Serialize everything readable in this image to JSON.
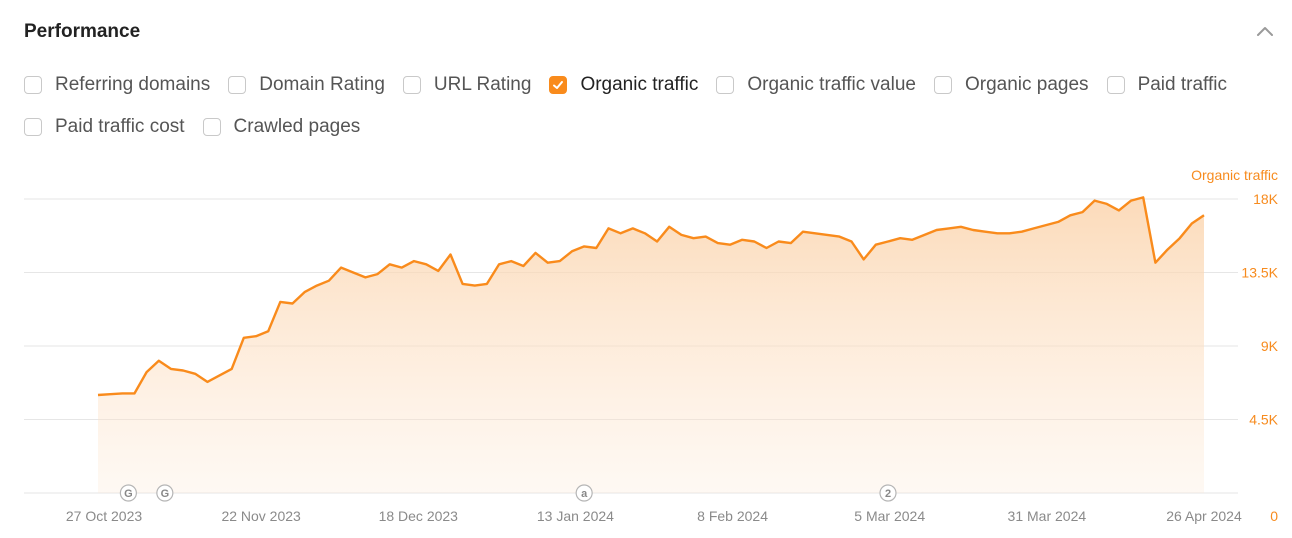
{
  "header": {
    "title": "Performance"
  },
  "filters": [
    {
      "label": "Referring domains",
      "checked": false
    },
    {
      "label": "Domain Rating",
      "checked": false
    },
    {
      "label": "URL Rating",
      "checked": false
    },
    {
      "label": "Organic traffic",
      "checked": true
    },
    {
      "label": "Organic traffic value",
      "checked": false
    },
    {
      "label": "Organic pages",
      "checked": false
    },
    {
      "label": "Paid traffic",
      "checked": false
    },
    {
      "label": "Paid traffic cost",
      "checked": false
    },
    {
      "label": "Crawled pages",
      "checked": false
    }
  ],
  "colors": {
    "accent": "#f98b1c",
    "grid": "#e6e6e6",
    "axis_text": "#8a8a8a"
  },
  "chart_data": {
    "type": "area",
    "series_label": "Organic traffic",
    "y_ticks": [
      {
        "value": 0,
        "label": "0"
      },
      {
        "value": 4500,
        "label": "4.5K"
      },
      {
        "value": 9000,
        "label": "9K"
      },
      {
        "value": 13500,
        "label": "13.5K"
      },
      {
        "value": 18000,
        "label": "18K"
      }
    ],
    "ylim": [
      0,
      18000
    ],
    "x_ticks": [
      "27 Oct 2023",
      "22 Nov 2023",
      "18 Dec 2023",
      "13 Jan 2024",
      "8 Feb 2024",
      "5 Mar 2024",
      "31 Mar 2024",
      "26 Apr 2024"
    ],
    "x_start": "2023-10-27",
    "x_end": "2024-04-26",
    "annotations": [
      {
        "date": "2023-11-01",
        "label": "G"
      },
      {
        "date": "2023-11-07",
        "label": "G"
      },
      {
        "date": "2024-01-15",
        "label": "a"
      },
      {
        "date": "2024-03-05",
        "label": "2"
      }
    ],
    "series": [
      {
        "name": "Organic traffic",
        "color": "#f98b1c",
        "x": [
          "2023-10-27",
          "2023-10-29",
          "2023-10-31",
          "2023-11-02",
          "2023-11-04",
          "2023-11-06",
          "2023-11-08",
          "2023-11-10",
          "2023-11-12",
          "2023-11-14",
          "2023-11-16",
          "2023-11-18",
          "2023-11-20",
          "2023-11-22",
          "2023-11-24",
          "2023-11-26",
          "2023-11-28",
          "2023-11-30",
          "2023-12-02",
          "2023-12-04",
          "2023-12-06",
          "2023-12-08",
          "2023-12-10",
          "2023-12-12",
          "2023-12-14",
          "2023-12-16",
          "2023-12-18",
          "2023-12-20",
          "2023-12-22",
          "2023-12-24",
          "2023-12-26",
          "2023-12-28",
          "2023-12-30",
          "2024-01-01",
          "2024-01-03",
          "2024-01-05",
          "2024-01-07",
          "2024-01-09",
          "2024-01-11",
          "2024-01-13",
          "2024-01-15",
          "2024-01-17",
          "2024-01-19",
          "2024-01-21",
          "2024-01-23",
          "2024-01-25",
          "2024-01-27",
          "2024-01-29",
          "2024-01-31",
          "2024-02-02",
          "2024-02-04",
          "2024-02-06",
          "2024-02-08",
          "2024-02-10",
          "2024-02-12",
          "2024-02-14",
          "2024-02-16",
          "2024-02-18",
          "2024-02-20",
          "2024-02-22",
          "2024-02-24",
          "2024-02-26",
          "2024-02-28",
          "2024-03-01",
          "2024-03-03",
          "2024-03-05",
          "2024-03-07",
          "2024-03-09",
          "2024-03-11",
          "2024-03-13",
          "2024-03-15",
          "2024-03-17",
          "2024-03-19",
          "2024-03-21",
          "2024-03-23",
          "2024-03-25",
          "2024-03-27",
          "2024-03-29",
          "2024-03-31",
          "2024-04-02",
          "2024-04-04",
          "2024-04-06",
          "2024-04-08",
          "2024-04-10",
          "2024-04-12",
          "2024-04-14",
          "2024-04-16",
          "2024-04-18",
          "2024-04-20",
          "2024-04-22",
          "2024-04-24",
          "2024-04-26"
        ],
        "values": [
          6000,
          6050,
          6100,
          6100,
          7400,
          8100,
          7600,
          7500,
          7300,
          6800,
          7200,
          7600,
          9500,
          9600,
          9900,
          11700,
          11600,
          12300,
          12700,
          13000,
          13800,
          13500,
          13200,
          13400,
          14000,
          13800,
          14200,
          14000,
          13600,
          14600,
          12800,
          12700,
          12800,
          14000,
          14200,
          13900,
          14700,
          14100,
          14200,
          14800,
          15100,
          15000,
          16200,
          15900,
          16200,
          15900,
          15400,
          16300,
          15800,
          15600,
          15700,
          15300,
          15200,
          15500,
          15400,
          15000,
          15400,
          15300,
          16000,
          15900,
          15800,
          15700,
          15400,
          14300,
          15200,
          15400,
          15600,
          15500,
          15800,
          16100,
          16200,
          16300,
          16100,
          16000,
          15900,
          15900,
          16000,
          16200,
          16400,
          16600,
          17000,
          17200,
          17900,
          17700,
          17300,
          17900,
          18100,
          14100,
          14900,
          15600,
          16500,
          17000
        ]
      }
    ]
  }
}
